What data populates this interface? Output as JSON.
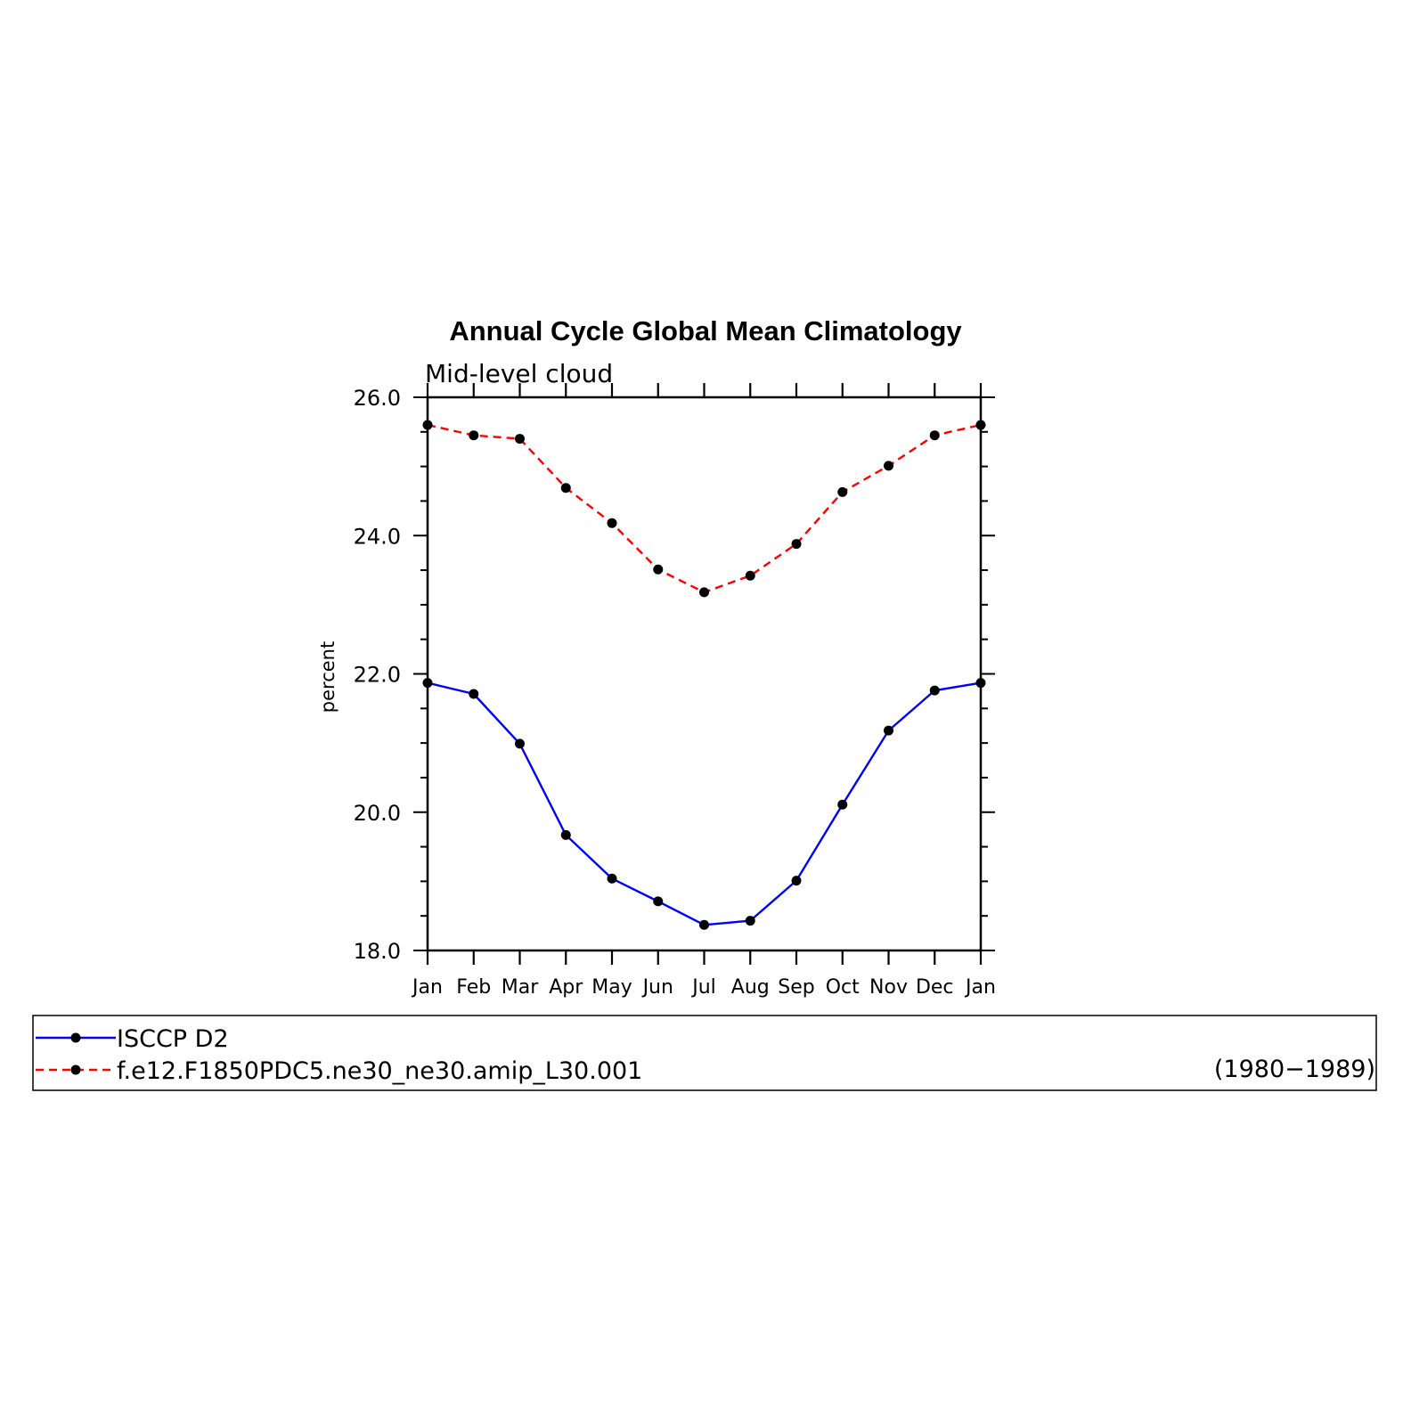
{
  "chart_data": {
    "type": "line",
    "title": "Annual Cycle Global Mean Climatology",
    "subtitle": "Mid-level cloud",
    "xlabel": "",
    "ylabel": "percent",
    "categories": [
      "Jan",
      "Feb",
      "Mar",
      "Apr",
      "May",
      "Jun",
      "Jul",
      "Aug",
      "Sep",
      "Oct",
      "Nov",
      "Dec",
      "Jan"
    ],
    "ylim": [
      18.0,
      26.0
    ],
    "yticks": [
      "18.0",
      "20.0",
      "22.0",
      "24.0",
      "26.0"
    ],
    "series": [
      {
        "name": "ISCCP D2",
        "color": "#0000ff",
        "dash": "solid",
        "values": [
          21.87,
          21.71,
          20.99,
          19.67,
          19.04,
          18.71,
          18.37,
          18.43,
          19.01,
          20.11,
          21.18,
          21.76,
          21.87
        ]
      },
      {
        "name": "f.e12.F1850PDC5.ne30_ne30.amip_L30.001",
        "color": "#ff0000",
        "dash": "dashed",
        "values": [
          25.6,
          25.45,
          25.4,
          24.69,
          24.18,
          23.51,
          23.18,
          23.42,
          23.88,
          24.63,
          25.01,
          25.45,
          25.6
        ]
      }
    ],
    "legend": {
      "placement": "bottom",
      "note": "(1980−1989)"
    },
    "grid": false
  }
}
